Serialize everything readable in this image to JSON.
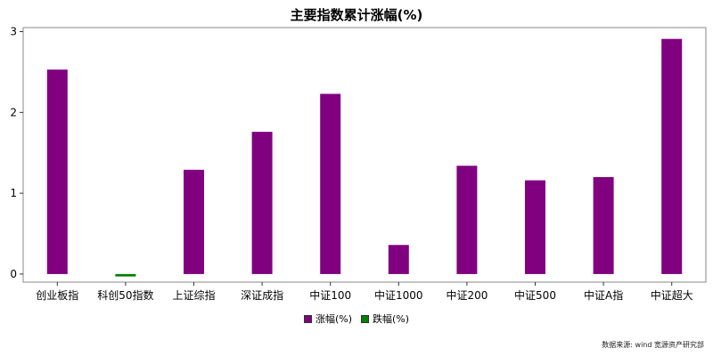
{
  "chart_data": {
    "type": "bar",
    "title": "主要指数累计涨幅(%)",
    "categories": [
      "创业板指",
      "科创50指数",
      "上证综指",
      "深证成指",
      "中证100",
      "中证1000",
      "中证200",
      "中证500",
      "中证A指",
      "中证超大"
    ],
    "values": [
      2.53,
      -0.03,
      1.29,
      1.76,
      2.23,
      0.36,
      1.34,
      1.16,
      1.2,
      2.91
    ],
    "ylim": [
      -0.1,
      3.05
    ],
    "yticks": [
      0,
      1,
      2,
      3
    ],
    "xlabel": "",
    "ylabel": "",
    "grid": false,
    "legend_position": "bottom-center",
    "legend": [
      {
        "label": "涨幅(%)",
        "color": "#800080"
      },
      {
        "label": "跌幅(%)",
        "color": "#008000"
      }
    ],
    "colors": {
      "positive": "#800080",
      "negative": "#008000"
    }
  },
  "footer": {
    "source": "数据来源:  wind 宽源资产研究部"
  }
}
